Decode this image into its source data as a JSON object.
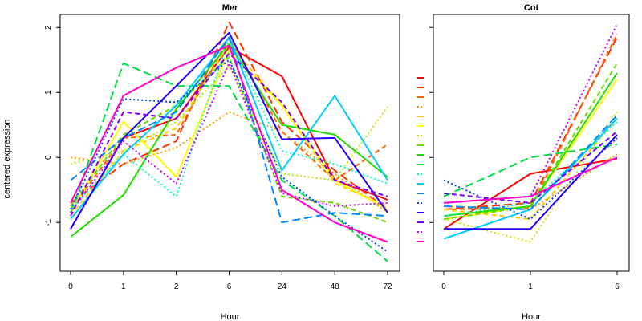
{
  "chart_data": [
    {
      "type": "line",
      "title": "Mer",
      "xlabel": "Hour",
      "ylabel": "centered expression",
      "x": [
        "0",
        "1",
        "2",
        "6",
        "24",
        "48",
        "72"
      ],
      "ylim": [
        -1.75,
        2.2
      ],
      "yticks": [
        -1,
        0,
        1,
        2
      ],
      "series": [
        {
          "color": "#ff0000",
          "dash": "solid",
          "values": [
            -1.1,
            0.3,
            0.6,
            1.7,
            1.25,
            -0.35,
            -0.65
          ]
        },
        {
          "color": "#ff3300",
          "dash": "long",
          "values": [
            -0.7,
            -0.1,
            0.25,
            2.08,
            0.55,
            -0.2,
            -0.8
          ]
        },
        {
          "color": "#ff6600",
          "dash": "dash",
          "values": [
            -0.8,
            0.3,
            0.35,
            1.85,
            0.4,
            -0.35,
            0.2
          ]
        },
        {
          "color": "#ff9900",
          "dash": "dot",
          "values": [
            0.0,
            -0.1,
            0.15,
            0.7,
            0.4,
            -0.25,
            -0.85
          ]
        },
        {
          "color": "#ffcc00",
          "dash": "dash",
          "values": [
            -0.9,
            0.1,
            0.45,
            1.75,
            0.8,
            -0.4,
            -0.75
          ]
        },
        {
          "color": "#ffff00",
          "dash": "solid",
          "values": [
            -0.85,
            0.55,
            -0.3,
            1.65,
            0.8,
            -0.35,
            -0.8
          ]
        },
        {
          "color": "#bbee00",
          "dash": "dot",
          "values": [
            -0.1,
            0.1,
            0.55,
            1.4,
            -0.25,
            -0.35,
            0.78
          ]
        },
        {
          "color": "#66dd00",
          "dash": "dash",
          "values": [
            -0.75,
            0.35,
            0.8,
            1.55,
            -0.6,
            -0.7,
            -1.0
          ]
        },
        {
          "color": "#22dd00",
          "dash": "solid",
          "values": [
            -1.22,
            -0.58,
            0.75,
            1.75,
            0.5,
            0.35,
            -0.3
          ]
        },
        {
          "color": "#00dd44",
          "dash": "long",
          "values": [
            -0.85,
            1.45,
            1.1,
            1.1,
            -0.35,
            -0.9,
            -1.6
          ]
        },
        {
          "color": "#00ffbb",
          "dash": "dot",
          "values": [
            -0.8,
            0.05,
            -0.6,
            1.85,
            0.1,
            -0.1,
            -0.4
          ]
        },
        {
          "color": "#00ccff",
          "dash": "solid",
          "values": [
            -0.95,
            0.05,
            0.8,
            1.85,
            -0.2,
            0.95,
            -0.35
          ]
        },
        {
          "color": "#0088ff",
          "dash": "long",
          "values": [
            -0.35,
            0.3,
            0.7,
            1.85,
            -1.0,
            -0.85,
            -0.9
          ]
        },
        {
          "color": "#0044ff",
          "dash": "dot",
          "values": [
            -0.8,
            0.9,
            0.85,
            1.5,
            -0.3,
            -0.9,
            -1.45
          ]
        },
        {
          "color": "#2200ff",
          "dash": "solid",
          "values": [
            -1.1,
            0.3,
            1.1,
            1.92,
            0.28,
            0.3,
            -0.85
          ]
        },
        {
          "color": "#7700ff",
          "dash": "dash",
          "values": [
            -0.9,
            0.7,
            0.6,
            1.6,
            0.85,
            -0.35,
            -0.6
          ]
        },
        {
          "color": "#cc00ff",
          "dash": "dot",
          "values": [
            -0.85,
            0.25,
            -0.4,
            1.45,
            -0.55,
            -0.75,
            -0.7
          ]
        },
        {
          "color": "#ff00cc",
          "dash": "solid",
          "values": [
            -0.7,
            0.95,
            1.38,
            1.72,
            -0.5,
            -1.0,
            -1.3
          ]
        }
      ]
    },
    {
      "type": "line",
      "title": "Cot",
      "xlabel": "Hour",
      "x": [
        "0",
        "1",
        "6"
      ],
      "ylim": [
        -1.75,
        2.2
      ],
      "yticks": [
        -1,
        0,
        1,
        2
      ],
      "series": [
        {
          "color": "#ff0000",
          "dash": "solid",
          "values": [
            -1.1,
            -0.25,
            -0.02
          ]
        },
        {
          "color": "#ff3300",
          "dash": "long",
          "values": [
            -0.8,
            -0.7,
            1.85
          ]
        },
        {
          "color": "#ff6600",
          "dash": "dash",
          "values": [
            -0.8,
            -0.78,
            1.9
          ]
        },
        {
          "color": "#ff9900",
          "dash": "dot",
          "values": [
            -0.75,
            -0.8,
            0.05
          ]
        },
        {
          "color": "#ffcc00",
          "dash": "dash",
          "values": [
            -0.8,
            -0.95,
            0.6
          ]
        },
        {
          "color": "#ffff00",
          "dash": "solid",
          "values": [
            -0.95,
            -0.75,
            1.2
          ]
        },
        {
          "color": "#bbee00",
          "dash": "dot",
          "values": [
            -0.95,
            -1.3,
            0.7
          ]
        },
        {
          "color": "#66dd00",
          "dash": "dash",
          "values": [
            -0.95,
            -0.75,
            1.45
          ]
        },
        {
          "color": "#22dd00",
          "dash": "solid",
          "values": [
            -0.9,
            -0.75,
            1.3
          ]
        },
        {
          "color": "#00dd44",
          "dash": "long",
          "values": [
            -0.6,
            0.0,
            0.2
          ]
        },
        {
          "color": "#00ffbb",
          "dash": "dot",
          "values": [
            -0.9,
            -0.7,
            0.55
          ]
        },
        {
          "color": "#00ccff",
          "dash": "solid",
          "values": [
            -1.25,
            -0.8,
            0.6
          ]
        },
        {
          "color": "#0088ff",
          "dash": "long",
          "values": [
            -0.75,
            -0.8,
            0.65
          ]
        },
        {
          "color": "#0044ff",
          "dash": "dot",
          "values": [
            -0.35,
            -0.95,
            0.3
          ]
        },
        {
          "color": "#2200ff",
          "dash": "solid",
          "values": [
            -1.1,
            -1.1,
            0.35
          ]
        },
        {
          "color": "#7700ff",
          "dash": "dash",
          "values": [
            -0.55,
            -0.7,
            0.4
          ]
        },
        {
          "color": "#cc00ff",
          "dash": "dot",
          "values": [
            -0.7,
            -0.6,
            2.05
          ]
        },
        {
          "color": "#ff00cc",
          "dash": "solid",
          "values": [
            -0.7,
            -0.6,
            0.0
          ]
        }
      ]
    }
  ]
}
